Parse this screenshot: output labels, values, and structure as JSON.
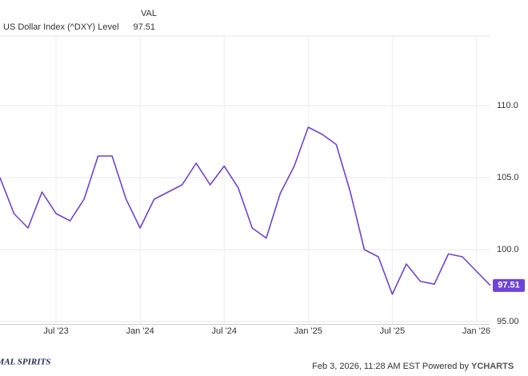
{
  "chart_data": {
    "type": "line",
    "value_header": "VAL",
    "x": [
      "2023-03",
      "2023-04",
      "2023-05",
      "2023-06",
      "2023-07",
      "2023-08",
      "2023-09",
      "2023-10",
      "2023-11",
      "2023-12",
      "2024-01",
      "2024-02",
      "2024-03",
      "2024-04",
      "2024-05",
      "2024-06",
      "2024-07",
      "2024-08",
      "2024-09",
      "2024-10",
      "2024-11",
      "2024-12",
      "2025-01",
      "2025-02",
      "2025-03",
      "2025-04",
      "2025-05",
      "2025-06",
      "2025-07",
      "2025-08",
      "2025-09",
      "2025-10",
      "2025-11",
      "2025-12",
      "2026-01",
      "2026-02"
    ],
    "series": [
      {
        "name": "US Dollar Index (^DXY) Level",
        "color": "#6f42d9",
        "values": [
          105.0,
          102.5,
          101.5,
          104.0,
          102.5,
          102.0,
          103.5,
          106.5,
          106.5,
          103.5,
          101.5,
          103.5,
          104.0,
          104.5,
          106.0,
          104.5,
          105.8,
          104.3,
          101.5,
          100.8,
          103.9,
          105.8,
          108.5,
          108.0,
          107.3,
          104.0,
          100.0,
          99.5,
          96.9,
          99.0,
          97.8,
          97.6,
          99.7,
          99.5,
          98.5,
          97.51
        ]
      }
    ],
    "xlim": [
      "2023-03",
      "2026-02"
    ],
    "xticks": [
      {
        "value": "2023-07",
        "label": "Jul '23"
      },
      {
        "value": "2024-01",
        "label": "Jan '24"
      },
      {
        "value": "2024-07",
        "label": "Jul '24"
      },
      {
        "value": "2025-01",
        "label": "Jan '25"
      },
      {
        "value": "2025-07",
        "label": "Jul '25"
      },
      {
        "value": "2026-01",
        "label": "Jan '26"
      }
    ],
    "ylim": [
      94.8,
      114.8
    ],
    "yticks": [
      {
        "value": 95,
        "label": "95.00"
      },
      {
        "value": 100,
        "label": "100.0"
      },
      {
        "value": 105,
        "label": "105.0"
      },
      {
        "value": 110,
        "label": "110.0"
      }
    ],
    "grid": true,
    "footer": "Feb 3, 2026, 11:28 AM EST Powered by",
    "brand": "YCHARTS",
    "logo": "ANIMAL SPIRITS"
  }
}
